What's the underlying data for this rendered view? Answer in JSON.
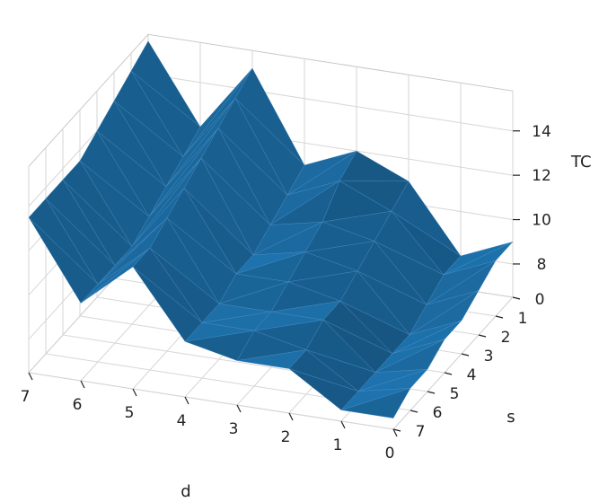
{
  "chart_data": {
    "type": "surface",
    "title": "",
    "xlabel": "d",
    "ylabel": "s",
    "zlabel": "TC",
    "x_ticks": [
      "0",
      "1",
      "2",
      "3",
      "4",
      "5",
      "6",
      "7"
    ],
    "y_ticks": [
      "0",
      "1",
      "2",
      "3",
      "4",
      "5",
      "6",
      "7"
    ],
    "z_ticks": [
      "8",
      "10",
      "12",
      "14"
    ],
    "xlim": [
      0,
      7
    ],
    "ylim": [
      0,
      7
    ],
    "zlim": [
      6.5,
      15.8
    ],
    "grid": true,
    "surface_color": "#1f77b4",
    "x": [
      0,
      1,
      2,
      3,
      4,
      5,
      6,
      7
    ],
    "s": [
      0,
      1,
      2,
      3,
      4,
      5,
      6,
      7
    ],
    "z_rows_by_s": [
      [
        9.0,
        8.0,
        11.0,
        12.0,
        11.0,
        15.0,
        12.0,
        15.5
      ],
      [
        9.0,
        8.0,
        10.5,
        11.5,
        10.5,
        14.5,
        11.5,
        15.0
      ],
      [
        8.5,
        7.5,
        10.0,
        10.5,
        10.0,
        14.0,
        11.0,
        14.5
      ],
      [
        8.0,
        7.0,
        9.5,
        10.0,
        9.5,
        13.5,
        10.5,
        14.0
      ],
      [
        8.0,
        7.0,
        9.0,
        9.5,
        9.5,
        13.0,
        10.0,
        13.5
      ],
      [
        7.5,
        7.0,
        9.0,
        9.0,
        9.0,
        12.5,
        10.0,
        13.5
      ],
      [
        7.5,
        7.0,
        8.5,
        9.0,
        9.0,
        12.0,
        10.0,
        13.5
      ],
      [
        7.0,
        7.0,
        8.5,
        8.5,
        9.0,
        12.0,
        10.0,
        13.5
      ]
    ]
  }
}
